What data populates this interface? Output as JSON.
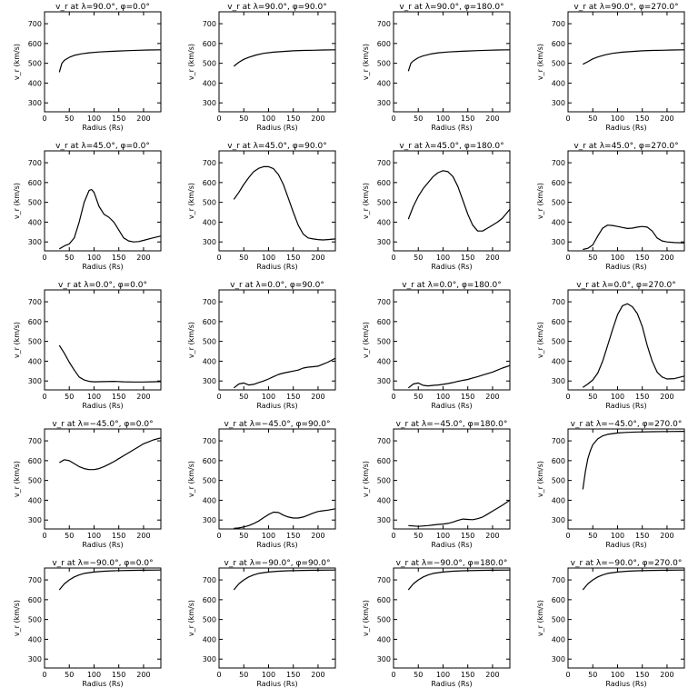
{
  "chart_data": [
    {
      "type": "line",
      "title": "v_r at λ=90.0°, φ=0.0°",
      "xlabel": "Radius (Rs)",
      "ylabel": "v_r (km/s)",
      "xlim": [
        0,
        235
      ],
      "ylim": [
        255,
        760
      ],
      "xticks": [
        0,
        50,
        100,
        150,
        200
      ],
      "yticks": [
        300,
        400,
        500,
        600,
        700
      ],
      "x": [
        30,
        35,
        40,
        50,
        60,
        75,
        90,
        110,
        130,
        150,
        170,
        190,
        210,
        235
      ],
      "y": [
        455,
        500,
        515,
        530,
        540,
        548,
        553,
        557,
        560,
        562,
        564,
        566,
        567,
        568
      ]
    },
    {
      "type": "line",
      "title": "v_r at λ=90.0°, φ=90.0°",
      "xlabel": "Radius (Rs)",
      "ylabel": "v_r (km/s)",
      "xlim": [
        0,
        235
      ],
      "ylim": [
        255,
        760
      ],
      "xticks": [
        0,
        50,
        100,
        150,
        200
      ],
      "yticks": [
        300,
        400,
        500,
        600,
        700
      ],
      "x": [
        30,
        40,
        50,
        60,
        75,
        90,
        110,
        130,
        150,
        170,
        190,
        210,
        235
      ],
      "y": [
        485,
        505,
        520,
        530,
        542,
        550,
        556,
        560,
        563,
        565,
        566,
        567,
        568
      ]
    },
    {
      "type": "line",
      "title": "v_r at λ=90.0°, φ=180.0°",
      "xlabel": "Radius (Rs)",
      "ylabel": "v_r (km/s)",
      "xlim": [
        0,
        235
      ],
      "ylim": [
        255,
        760
      ],
      "xticks": [
        0,
        50,
        100,
        150,
        200
      ],
      "yticks": [
        300,
        400,
        500,
        600,
        700
      ],
      "x": [
        30,
        35,
        40,
        50,
        60,
        75,
        90,
        110,
        130,
        150,
        170,
        190,
        210,
        235
      ],
      "y": [
        460,
        500,
        512,
        528,
        538,
        547,
        553,
        557,
        560,
        562,
        564,
        566,
        567,
        568
      ]
    },
    {
      "type": "line",
      "title": "v_r at λ=90.0°, φ=270.0°",
      "xlabel": "Radius (Rs)",
      "ylabel": "v_r (km/s)",
      "xlim": [
        0,
        235
      ],
      "ylim": [
        255,
        760
      ],
      "xticks": [
        0,
        50,
        100,
        150,
        200
      ],
      "yticks": [
        300,
        400,
        500,
        600,
        700
      ],
      "x": [
        30,
        40,
        50,
        60,
        75,
        90,
        110,
        130,
        150,
        170,
        190,
        210,
        235
      ],
      "y": [
        495,
        508,
        522,
        532,
        543,
        550,
        556,
        560,
        563,
        565,
        566,
        567,
        568
      ]
    },
    {
      "type": "line",
      "title": "v_r at λ=45.0°, φ=0.0°",
      "xlabel": "Radius (Rs)",
      "ylabel": "v_r (km/s)",
      "xlim": [
        0,
        235
      ],
      "ylim": [
        255,
        760
      ],
      "xticks": [
        0,
        50,
        100,
        150,
        200
      ],
      "yticks": [
        300,
        400,
        500,
        600,
        700
      ],
      "x": [
        30,
        40,
        50,
        60,
        70,
        80,
        90,
        95,
        100,
        110,
        120,
        130,
        140,
        150,
        160,
        170,
        180,
        190,
        200,
        215,
        235
      ],
      "y": [
        265,
        280,
        290,
        320,
        400,
        500,
        560,
        565,
        550,
        480,
        440,
        425,
        400,
        360,
        320,
        305,
        300,
        302,
        308,
        318,
        330
      ]
    },
    {
      "type": "line",
      "title": "v_r at λ=45.0°, φ=90.0°",
      "xlabel": "Radius (Rs)",
      "ylabel": "v_r (km/s)",
      "xlim": [
        0,
        235
      ],
      "ylim": [
        255,
        760
      ],
      "xticks": [
        0,
        50,
        100,
        150,
        200
      ],
      "yticks": [
        300,
        400,
        500,
        600,
        700
      ],
      "x": [
        30,
        40,
        50,
        60,
        70,
        80,
        90,
        100,
        110,
        120,
        130,
        140,
        150,
        160,
        170,
        180,
        190,
        200,
        210,
        220,
        235
      ],
      "y": [
        515,
        550,
        590,
        625,
        655,
        672,
        680,
        680,
        670,
        640,
        590,
        520,
        450,
        385,
        340,
        320,
        315,
        312,
        310,
        312,
        315
      ]
    },
    {
      "type": "line",
      "title": "v_r at λ=45.0°, φ=180.0°",
      "xlabel": "Radius (Rs)",
      "ylabel": "v_r (km/s)",
      "xlim": [
        0,
        235
      ],
      "ylim": [
        255,
        760
      ],
      "xticks": [
        0,
        50,
        100,
        150,
        200
      ],
      "yticks": [
        300,
        400,
        500,
        600,
        700
      ],
      "x": [
        30,
        40,
        50,
        60,
        70,
        80,
        90,
        100,
        110,
        120,
        130,
        140,
        150,
        160,
        170,
        180,
        190,
        200,
        210,
        220,
        235
      ],
      "y": [
        415,
        480,
        530,
        570,
        600,
        630,
        650,
        660,
        655,
        630,
        580,
        510,
        440,
        385,
        355,
        355,
        370,
        385,
        400,
        420,
        465
      ]
    },
    {
      "type": "line",
      "title": "v_r at λ=45.0°, φ=270.0°",
      "xlabel": "Radius (Rs)",
      "ylabel": "v_r (km/s)",
      "xlim": [
        0,
        235
      ],
      "ylim": [
        255,
        760
      ],
      "xticks": [
        0,
        50,
        100,
        150,
        200
      ],
      "yticks": [
        300,
        400,
        500,
        600,
        700
      ],
      "x": [
        30,
        40,
        50,
        60,
        70,
        80,
        90,
        100,
        110,
        120,
        130,
        140,
        150,
        160,
        170,
        180,
        190,
        200,
        215,
        235
      ],
      "y": [
        262,
        268,
        285,
        330,
        370,
        385,
        383,
        378,
        373,
        368,
        370,
        375,
        378,
        375,
        355,
        320,
        305,
        300,
        297,
        295
      ]
    },
    {
      "type": "line",
      "title": "v_r at λ=0.0°, φ=0.0°",
      "xlabel": "Radius (Rs)",
      "ylabel": "v_r (km/s)",
      "xlim": [
        0,
        235
      ],
      "ylim": [
        255,
        760
      ],
      "xticks": [
        0,
        50,
        100,
        150,
        200
      ],
      "yticks": [
        300,
        400,
        500,
        600,
        700
      ],
      "x": [
        30,
        40,
        50,
        60,
        70,
        80,
        90,
        100,
        120,
        140,
        160,
        180,
        200,
        215,
        235
      ],
      "y": [
        480,
        440,
        395,
        355,
        320,
        305,
        298,
        296,
        297,
        298,
        296,
        295,
        295,
        296,
        297
      ]
    },
    {
      "type": "line",
      "title": "v_r at λ=0.0°, φ=90.0°",
      "xlabel": "Radius (Rs)",
      "ylabel": "v_r (km/s)",
      "xlim": [
        0,
        235
      ],
      "ylim": [
        255,
        760
      ],
      "xticks": [
        0,
        50,
        100,
        150,
        200
      ],
      "yticks": [
        300,
        400,
        500,
        600,
        700
      ],
      "x": [
        30,
        40,
        50,
        60,
        70,
        80,
        90,
        100,
        110,
        120,
        130,
        140,
        150,
        160,
        170,
        180,
        190,
        200,
        210,
        220,
        235
      ],
      "y": [
        265,
        285,
        290,
        280,
        283,
        292,
        300,
        310,
        322,
        333,
        340,
        345,
        350,
        355,
        365,
        370,
        372,
        375,
        385,
        395,
        415
      ]
    },
    {
      "type": "line",
      "title": "v_r at λ=0.0°, φ=180.0°",
      "xlabel": "Radius (Rs)",
      "ylabel": "v_r (km/s)",
      "xlim": [
        0,
        235
      ],
      "ylim": [
        255,
        760
      ],
      "xticks": [
        0,
        50,
        100,
        150,
        200
      ],
      "yticks": [
        300,
        400,
        500,
        600,
        700
      ],
      "x": [
        30,
        40,
        50,
        60,
        70,
        80,
        90,
        100,
        110,
        120,
        130,
        140,
        150,
        160,
        170,
        180,
        190,
        200,
        210,
        220,
        235
      ],
      "y": [
        265,
        285,
        290,
        278,
        275,
        278,
        280,
        283,
        287,
        292,
        298,
        303,
        308,
        315,
        322,
        330,
        337,
        345,
        355,
        365,
        378
      ]
    },
    {
      "type": "line",
      "title": "v_r at λ=0.0°, φ=270.0°",
      "xlabel": "Radius (Rs)",
      "ylabel": "v_r (km/s)",
      "xlim": [
        0,
        235
      ],
      "ylim": [
        255,
        760
      ],
      "xticks": [
        0,
        50,
        100,
        150,
        200
      ],
      "yticks": [
        300,
        400,
        500,
        600,
        700
      ],
      "x": [
        30,
        40,
        50,
        60,
        70,
        80,
        90,
        100,
        110,
        120,
        130,
        140,
        150,
        160,
        170,
        180,
        190,
        200,
        215,
        235
      ],
      "y": [
        268,
        285,
        305,
        340,
        400,
        480,
        560,
        635,
        680,
        690,
        675,
        640,
        575,
        480,
        400,
        345,
        320,
        310,
        312,
        325
      ]
    },
    {
      "type": "line",
      "title": "v_r at λ=−45.0°, φ=0.0°",
      "xlabel": "Radius (Rs)",
      "ylabel": "v_r (km/s)",
      "xlim": [
        0,
        235
      ],
      "ylim": [
        255,
        760
      ],
      "xticks": [
        0,
        50,
        100,
        150,
        200
      ],
      "yticks": [
        300,
        400,
        500,
        600,
        700
      ],
      "x": [
        30,
        40,
        50,
        60,
        70,
        80,
        90,
        100,
        110,
        120,
        130,
        140,
        150,
        160,
        170,
        180,
        190,
        200,
        210,
        220,
        235
      ],
      "y": [
        590,
        605,
        600,
        585,
        570,
        560,
        555,
        555,
        560,
        570,
        582,
        595,
        610,
        625,
        640,
        655,
        670,
        685,
        695,
        705,
        715
      ]
    },
    {
      "type": "line",
      "title": "v_r at λ=−45.0°, φ=90.0°",
      "xlabel": "Radius (Rs)",
      "ylabel": "v_r (km/s)",
      "xlim": [
        0,
        235
      ],
      "ylim": [
        255,
        760
      ],
      "xticks": [
        0,
        50,
        100,
        150,
        200
      ],
      "yticks": [
        300,
        400,
        500,
        600,
        700
      ],
      "x": [
        30,
        40,
        50,
        60,
        70,
        80,
        90,
        100,
        110,
        120,
        130,
        140,
        150,
        160,
        170,
        180,
        190,
        200,
        210,
        220,
        235
      ],
      "y": [
        258,
        260,
        265,
        272,
        282,
        295,
        312,
        328,
        340,
        338,
        325,
        315,
        310,
        310,
        315,
        325,
        335,
        343,
        347,
        350,
        357
      ]
    },
    {
      "type": "line",
      "title": "v_r at λ=−45.0°, φ=180.0°",
      "xlabel": "Radius (Rs)",
      "ylabel": "v_r (km/s)",
      "xlim": [
        0,
        235
      ],
      "ylim": [
        255,
        760
      ],
      "xticks": [
        0,
        50,
        100,
        150,
        200
      ],
      "yticks": [
        300,
        400,
        500,
        600,
        700
      ],
      "x": [
        30,
        40,
        50,
        60,
        70,
        80,
        90,
        100,
        110,
        120,
        130,
        140,
        150,
        160,
        170,
        180,
        190,
        200,
        210,
        220,
        235
      ],
      "y": [
        272,
        270,
        268,
        270,
        272,
        275,
        278,
        280,
        283,
        290,
        298,
        305,
        303,
        302,
        307,
        315,
        330,
        345,
        360,
        375,
        400
      ]
    },
    {
      "type": "line",
      "title": "v_r at λ=−45.0°, φ=270.0°",
      "xlabel": "Radius (Rs)",
      "ylabel": "v_r (km/s)",
      "xlim": [
        0,
        235
      ],
      "ylim": [
        255,
        760
      ],
      "xticks": [
        0,
        50,
        100,
        150,
        200
      ],
      "yticks": [
        300,
        400,
        500,
        600,
        700
      ],
      "x": [
        30,
        35,
        40,
        45,
        50,
        60,
        70,
        80,
        100,
        120,
        140,
        170,
        200,
        235
      ],
      "y": [
        455,
        545,
        610,
        650,
        680,
        710,
        725,
        733,
        740,
        743,
        745,
        746,
        747,
        748
      ]
    },
    {
      "type": "line",
      "title": "v_r at λ=−90.0°, φ=0.0°",
      "xlabel": "Radius (Rs)",
      "ylabel": "v_r (km/s)",
      "xlim": [
        0,
        235
      ],
      "ylim": [
        255,
        760
      ],
      "xticks": [
        0,
        50,
        100,
        150,
        200
      ],
      "yticks": [
        300,
        400,
        500,
        600,
        700
      ],
      "x": [
        30,
        40,
        50,
        60,
        70,
        80,
        100,
        120,
        140,
        170,
        200,
        235
      ],
      "y": [
        650,
        680,
        700,
        715,
        725,
        733,
        740,
        744,
        746,
        748,
        749,
        750
      ]
    },
    {
      "type": "line",
      "title": "v_r at λ=−90.0°, φ=90.0°",
      "xlabel": "Radius (Rs)",
      "ylabel": "v_r (km/s)",
      "xlim": [
        0,
        235
      ],
      "ylim": [
        255,
        760
      ],
      "xticks": [
        0,
        50,
        100,
        150,
        200
      ],
      "yticks": [
        300,
        400,
        500,
        600,
        700
      ],
      "x": [
        30,
        40,
        50,
        60,
        70,
        80,
        100,
        120,
        140,
        170,
        200,
        235
      ],
      "y": [
        650,
        680,
        700,
        715,
        725,
        733,
        740,
        744,
        746,
        748,
        749,
        750
      ]
    },
    {
      "type": "line",
      "title": "v_r at λ=−90.0°, φ=180.0°",
      "xlabel": "Radius (Rs)",
      "ylabel": "v_r (km/s)",
      "xlim": [
        0,
        235
      ],
      "ylim": [
        255,
        760
      ],
      "xticks": [
        0,
        50,
        100,
        150,
        200
      ],
      "yticks": [
        300,
        400,
        500,
        600,
        700
      ],
      "x": [
        30,
        40,
        50,
        60,
        70,
        80,
        100,
        120,
        140,
        170,
        200,
        235
      ],
      "y": [
        650,
        680,
        700,
        715,
        725,
        733,
        740,
        744,
        746,
        748,
        749,
        750
      ]
    },
    {
      "type": "line",
      "title": "v_r at λ=−90.0°, φ=270.0°",
      "xlabel": "Radius (Rs)",
      "ylabel": "v_r (km/s)",
      "xlim": [
        0,
        235
      ],
      "ylim": [
        255,
        760
      ],
      "xticks": [
        0,
        50,
        100,
        150,
        200
      ],
      "yticks": [
        300,
        400,
        500,
        600,
        700
      ],
      "x": [
        30,
        40,
        50,
        60,
        70,
        80,
        100,
        120,
        140,
        170,
        200,
        235
      ],
      "y": [
        650,
        680,
        700,
        715,
        725,
        733,
        740,
        744,
        746,
        748,
        749,
        750
      ]
    }
  ]
}
